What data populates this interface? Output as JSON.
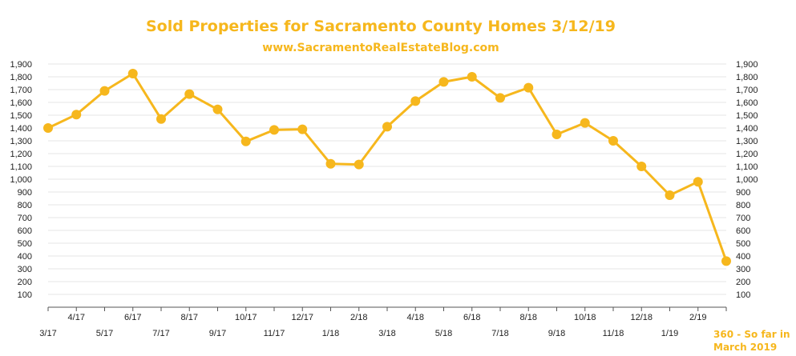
{
  "colors": {
    "accent": "#F6B71D",
    "grid": "#e6e6e6",
    "axis": "#555555",
    "text": "#222222"
  },
  "chart_data": {
    "type": "line",
    "title": "Sold Properties for Sacramento County Homes 3/12/19",
    "subtitle": "www.SacramentoRealEstateBlog.com",
    "categories": [
      "3/17",
      "4/17",
      "5/17",
      "6/17",
      "7/17",
      "8/17",
      "9/17",
      "10/17",
      "11/17",
      "12/17",
      "1/18",
      "2/18",
      "3/18",
      "4/18",
      "5/18",
      "6/18",
      "7/18",
      "8/18",
      "9/18",
      "10/18",
      "11/18",
      "12/18",
      "1/19",
      "2/19",
      "3/19"
    ],
    "category_labels": [
      "3/17",
      "4/17",
      "5/17",
      "6/17",
      "7/17",
      "8/17",
      "9/17",
      "10/17",
      "11/17",
      "12/17",
      "1/18",
      "2/18",
      "3/18",
      "4/18",
      "5/18",
      "6/18",
      "7/18",
      "8/18",
      "9/18",
      "10/18",
      "11/18",
      "12/18",
      "1/19",
      "2/19",
      ""
    ],
    "values": [
      1400,
      1505,
      1690,
      1825,
      1470,
      1665,
      1545,
      1295,
      1385,
      1390,
      1120,
      1115,
      1410,
      1610,
      1760,
      1800,
      1635,
      1715,
      1350,
      1440,
      1300,
      1100,
      875,
      980,
      360
    ],
    "ylim": [
      0,
      1900
    ],
    "yticks": [
      "1,900",
      "1,800",
      "1,700",
      "1,600",
      "1,500",
      "1,400",
      "1,300",
      "1,200",
      "1,100",
      "1,000",
      "900",
      "800",
      "700",
      "600",
      "500",
      "400",
      "300",
      "200",
      "100"
    ],
    "ytick_values": [
      1900,
      1800,
      1700,
      1600,
      1500,
      1400,
      1300,
      1200,
      1100,
      1000,
      900,
      800,
      700,
      600,
      500,
      400,
      300,
      200,
      100
    ],
    "grid": true,
    "annotation": {
      "line1": "360 - So far in",
      "line2": "March 2019"
    }
  }
}
